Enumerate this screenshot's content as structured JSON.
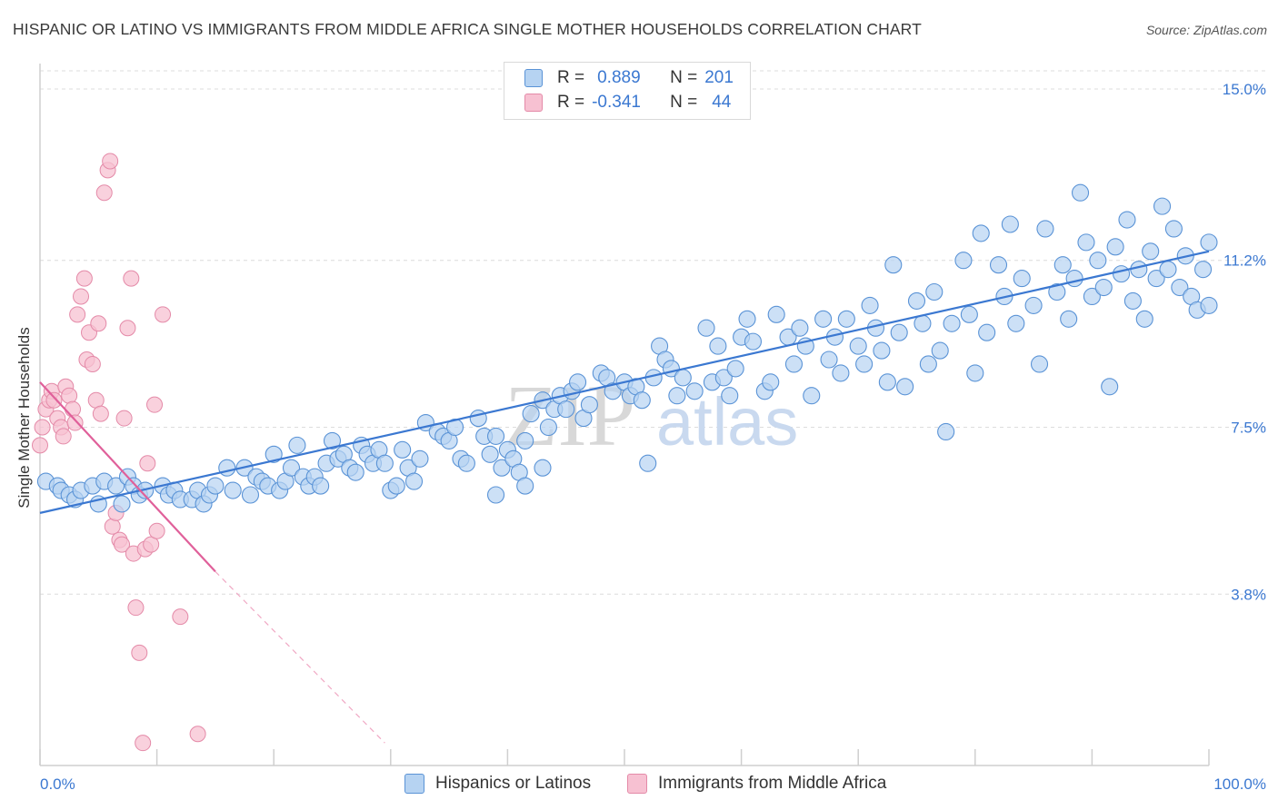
{
  "title": "HISPANIC OR LATINO VS IMMIGRANTS FROM MIDDLE AFRICA SINGLE MOTHER HOUSEHOLDS CORRELATION CHART",
  "source": "Source: ZipAtlas.com",
  "watermark": {
    "zip": "ZIP",
    "atlas": "atlas"
  },
  "legend": {
    "rows": [
      {
        "r_label": "R =",
        "r_value": "0.889",
        "n_label": "N =",
        "n_value": "201"
      },
      {
        "r_label": "R =",
        "r_value": "-0.341",
        "n_label": "N =",
        "n_value": "44"
      }
    ]
  },
  "bottom_legend": [
    "Hispanics or Latinos",
    "Immigrants from Middle Africa"
  ],
  "colors": {
    "blue": "#3b78d1",
    "blue_fill": "#b6d3f2",
    "pink": "#e0609a",
    "pink_fill": "#f7c1d2",
    "grid": "#dcdcdc"
  },
  "chart_data": {
    "type": "scatter",
    "ylabel": "Single Mother Households",
    "xlim": [
      0,
      100
    ],
    "ylim": [
      0,
      15.0
    ],
    "x_tick_labels": [
      "0.0%",
      "100.0%"
    ],
    "y_ticks": [
      3.8,
      7.5,
      11.2,
      15.0
    ],
    "y_tick_labels": [
      "3.8%",
      "7.5%",
      "11.2%",
      "15.0%"
    ],
    "grid": true,
    "series": [
      {
        "name": "Hispanics or Latinos",
        "color": "#3b78d1",
        "trendline": {
          "x": [
            0,
            100
          ],
          "y": [
            5.6,
            11.4
          ]
        },
        "points": [
          [
            0.5,
            6.3
          ],
          [
            1.5,
            6.2
          ],
          [
            1.8,
            6.1
          ],
          [
            2.5,
            6.0
          ],
          [
            3.0,
            5.9
          ],
          [
            3.5,
            6.1
          ],
          [
            4.5,
            6.2
          ],
          [
            5.0,
            5.8
          ],
          [
            5.5,
            6.3
          ],
          [
            6.5,
            6.2
          ],
          [
            7.5,
            6.4
          ],
          [
            7.0,
            5.8
          ],
          [
            8.0,
            6.2
          ],
          [
            8.5,
            6.0
          ],
          [
            9.0,
            6.1
          ],
          [
            10.5,
            6.2
          ],
          [
            11.0,
            6.0
          ],
          [
            11.5,
            6.1
          ],
          [
            12.0,
            5.9
          ],
          [
            13.0,
            5.9
          ],
          [
            13.5,
            6.1
          ],
          [
            14.0,
            5.8
          ],
          [
            14.5,
            6.0
          ],
          [
            15.0,
            6.2
          ],
          [
            16.0,
            6.6
          ],
          [
            16.5,
            6.1
          ],
          [
            17.5,
            6.6
          ],
          [
            18.0,
            6.0
          ],
          [
            18.5,
            6.4
          ],
          [
            19.0,
            6.3
          ],
          [
            19.5,
            6.2
          ],
          [
            20.0,
            6.9
          ],
          [
            20.5,
            6.1
          ],
          [
            21.0,
            6.3
          ],
          [
            21.5,
            6.6
          ],
          [
            22.0,
            7.1
          ],
          [
            22.5,
            6.4
          ],
          [
            23.0,
            6.2
          ],
          [
            23.5,
            6.4
          ],
          [
            24.0,
            6.2
          ],
          [
            24.5,
            6.7
          ],
          [
            25.0,
            7.2
          ],
          [
            25.5,
            6.8
          ],
          [
            26.0,
            6.9
          ],
          [
            26.5,
            6.6
          ],
          [
            27.0,
            6.5
          ],
          [
            27.5,
            7.1
          ],
          [
            28.0,
            6.9
          ],
          [
            28.5,
            6.7
          ],
          [
            29.0,
            7.0
          ],
          [
            29.5,
            6.7
          ],
          [
            30.0,
            6.1
          ],
          [
            30.5,
            6.2
          ],
          [
            31.0,
            7.0
          ],
          [
            31.5,
            6.6
          ],
          [
            32.0,
            6.3
          ],
          [
            32.5,
            6.8
          ],
          [
            33.0,
            7.6
          ],
          [
            34.0,
            7.4
          ],
          [
            34.5,
            7.3
          ],
          [
            35.0,
            7.2
          ],
          [
            35.5,
            7.5
          ],
          [
            36.0,
            6.8
          ],
          [
            36.5,
            6.7
          ],
          [
            37.5,
            7.7
          ],
          [
            38.0,
            7.3
          ],
          [
            38.5,
            6.9
          ],
          [
            39.0,
            7.3
          ],
          [
            39.5,
            6.6
          ],
          [
            40.0,
            7.0
          ],
          [
            40.5,
            6.8
          ],
          [
            41.0,
            6.5
          ],
          [
            41.5,
            7.2
          ],
          [
            42.0,
            7.8
          ],
          [
            43.0,
            8.1
          ],
          [
            43.5,
            7.5
          ],
          [
            44.0,
            7.9
          ],
          [
            44.5,
            8.2
          ],
          [
            45.0,
            7.9
          ],
          [
            45.5,
            8.3
          ],
          [
            46.0,
            8.5
          ],
          [
            46.5,
            7.7
          ],
          [
            47.0,
            8.0
          ],
          [
            48.0,
            8.7
          ],
          [
            48.5,
            8.6
          ],
          [
            49.0,
            8.3
          ],
          [
            50.0,
            8.5
          ],
          [
            50.5,
            8.2
          ],
          [
            51.0,
            8.4
          ],
          [
            51.5,
            8.1
          ],
          [
            52.0,
            6.7
          ],
          [
            52.5,
            8.6
          ],
          [
            53.0,
            9.3
          ],
          [
            53.5,
            9.0
          ],
          [
            54.0,
            8.8
          ],
          [
            54.5,
            8.2
          ],
          [
            55.0,
            8.6
          ],
          [
            56.0,
            8.3
          ],
          [
            57.0,
            9.7
          ],
          [
            57.5,
            8.5
          ],
          [
            58.0,
            9.3
          ],
          [
            58.5,
            8.6
          ],
          [
            59.0,
            8.2
          ],
          [
            59.5,
            8.8
          ],
          [
            60.0,
            9.5
          ],
          [
            60.5,
            9.9
          ],
          [
            61.0,
            9.4
          ],
          [
            62.0,
            8.3
          ],
          [
            62.5,
            8.5
          ],
          [
            63.0,
            10.0
          ],
          [
            64.0,
            9.5
          ],
          [
            64.5,
            8.9
          ],
          [
            65.0,
            9.7
          ],
          [
            65.5,
            9.3
          ],
          [
            66.0,
            8.2
          ],
          [
            67.0,
            9.9
          ],
          [
            67.5,
            9.0
          ],
          [
            68.0,
            9.5
          ],
          [
            68.5,
            8.7
          ],
          [
            69.0,
            9.9
          ],
          [
            70.0,
            9.3
          ],
          [
            70.5,
            8.9
          ],
          [
            71.0,
            10.2
          ],
          [
            71.5,
            9.7
          ],
          [
            72.0,
            9.2
          ],
          [
            72.5,
            8.5
          ],
          [
            73.0,
            11.1
          ],
          [
            73.5,
            9.6
          ],
          [
            74.0,
            8.4
          ],
          [
            75.0,
            10.3
          ],
          [
            75.5,
            9.8
          ],
          [
            76.0,
            8.9
          ],
          [
            76.5,
            10.5
          ],
          [
            77.0,
            9.2
          ],
          [
            77.5,
            7.4
          ],
          [
            78.0,
            9.8
          ],
          [
            79.0,
            11.2
          ],
          [
            79.5,
            10.0
          ],
          [
            80.0,
            8.7
          ],
          [
            80.5,
            11.8
          ],
          [
            81.0,
            9.6
          ],
          [
            82.0,
            11.1
          ],
          [
            82.5,
            10.4
          ],
          [
            83.0,
            12.0
          ],
          [
            83.5,
            9.8
          ],
          [
            84.0,
            10.8
          ],
          [
            85.0,
            10.2
          ],
          [
            85.5,
            8.9
          ],
          [
            86.0,
            11.9
          ],
          [
            87.0,
            10.5
          ],
          [
            87.5,
            11.1
          ],
          [
            88.0,
            9.9
          ],
          [
            88.5,
            10.8
          ],
          [
            89.0,
            12.7
          ],
          [
            89.5,
            11.6
          ],
          [
            90.0,
            10.4
          ],
          [
            90.5,
            11.2
          ],
          [
            91.0,
            10.6
          ],
          [
            91.5,
            8.4
          ],
          [
            92.0,
            11.5
          ],
          [
            92.5,
            10.9
          ],
          [
            93.0,
            12.1
          ],
          [
            93.5,
            10.3
          ],
          [
            94.0,
            11.0
          ],
          [
            94.5,
            9.9
          ],
          [
            95.0,
            11.4
          ],
          [
            95.5,
            10.8
          ],
          [
            96.0,
            12.4
          ],
          [
            96.5,
            11.0
          ],
          [
            97.0,
            11.9
          ],
          [
            97.5,
            10.6
          ],
          [
            98.0,
            11.3
          ],
          [
            98.5,
            10.4
          ],
          [
            99.0,
            10.1
          ],
          [
            99.5,
            11.0
          ],
          [
            100.0,
            10.2
          ],
          [
            100.0,
            11.6
          ],
          [
            39.0,
            6.0
          ],
          [
            41.5,
            6.2
          ],
          [
            43.0,
            6.6
          ]
        ]
      },
      {
        "name": "Immigrants from Middle Africa",
        "color": "#e0609a",
        "trendline": {
          "x": [
            0,
            15
          ],
          "y": [
            8.5,
            4.3
          ],
          "dashed_to": [
            29.5,
            0.5
          ]
        },
        "points": [
          [
            0,
            7.1
          ],
          [
            0.2,
            7.5
          ],
          [
            0.5,
            7.9
          ],
          [
            0.8,
            8.1
          ],
          [
            1.0,
            8.3
          ],
          [
            1.2,
            8.1
          ],
          [
            1.5,
            7.7
          ],
          [
            1.8,
            7.5
          ],
          [
            2.0,
            7.3
          ],
          [
            2.2,
            8.4
          ],
          [
            2.5,
            8.2
          ],
          [
            2.8,
            7.9
          ],
          [
            3.0,
            7.6
          ],
          [
            3.2,
            10.0
          ],
          [
            3.5,
            10.4
          ],
          [
            3.8,
            10.8
          ],
          [
            4.0,
            9.0
          ],
          [
            4.2,
            9.6
          ],
          [
            4.5,
            8.9
          ],
          [
            4.8,
            8.1
          ],
          [
            5.0,
            9.8
          ],
          [
            5.2,
            7.8
          ],
          [
            5.5,
            12.7
          ],
          [
            5.8,
            13.2
          ],
          [
            6.0,
            13.4
          ],
          [
            6.2,
            5.3
          ],
          [
            6.5,
            5.6
          ],
          [
            6.8,
            5.0
          ],
          [
            7.0,
            4.9
          ],
          [
            7.2,
            7.7
          ],
          [
            7.5,
            9.7
          ],
          [
            7.8,
            10.8
          ],
          [
            8.0,
            4.7
          ],
          [
            8.2,
            3.5
          ],
          [
            8.5,
            2.5
          ],
          [
            8.8,
            0.5
          ],
          [
            9.0,
            4.8
          ],
          [
            9.2,
            6.7
          ],
          [
            9.5,
            4.9
          ],
          [
            9.8,
            8.0
          ],
          [
            10.0,
            5.2
          ],
          [
            10.5,
            10.0
          ],
          [
            12.0,
            3.3
          ],
          [
            13.5,
            0.7
          ]
        ]
      }
    ]
  }
}
